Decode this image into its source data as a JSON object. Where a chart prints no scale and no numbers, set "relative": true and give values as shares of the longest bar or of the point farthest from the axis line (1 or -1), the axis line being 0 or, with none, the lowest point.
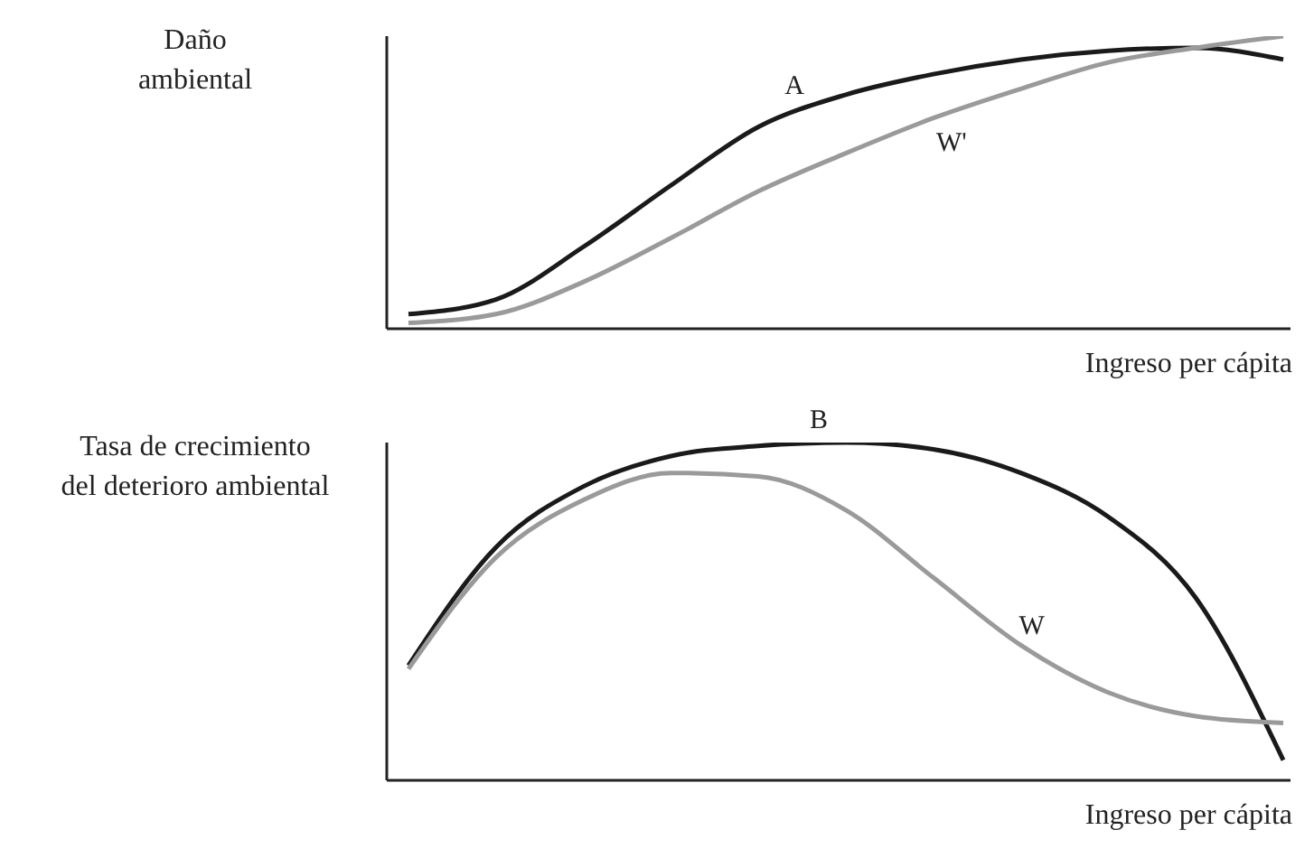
{
  "chart_data": [
    {
      "type": "line",
      "relative": true,
      "ylabel": "Daño ambiental",
      "xlabel": "Ingreso per cápita",
      "categories": [
        null,
        null,
        null,
        null,
        null,
        null,
        null,
        null,
        null,
        null,
        null
      ],
      "legend": false,
      "grid": false,
      "marker": "none",
      "line_style": "solid",
      "series": [
        {
          "name": "A",
          "color": "#1a1a1a",
          "values": [
            0.05,
            0.1,
            0.28,
            0.49,
            0.69,
            0.8,
            0.87,
            0.92,
            0.95,
            0.96,
            0.92
          ]
        },
        {
          "name": "W'",
          "color": "#9a9a9a",
          "values": [
            0.02,
            0.05,
            0.16,
            0.31,
            0.47,
            0.6,
            0.72,
            0.82,
            0.91,
            0.96,
            1
          ]
        }
      ]
    },
    {
      "type": "line",
      "relative": true,
      "ylabel": "Tasa de crecimiento del deterioro ambiental",
      "xlabel": "Ingreso per cápita",
      "categories": [
        null,
        null,
        null,
        null,
        null,
        null,
        null,
        null,
        null,
        null,
        null
      ],
      "legend": false,
      "grid": false,
      "marker": "none",
      "line_style": "solid",
      "series": [
        {
          "name": "B",
          "color": "#1a1a1a",
          "values": [
            0.34,
            0.69,
            0.87,
            0.96,
            0.99,
            1,
            0.98,
            0.91,
            0.78,
            0.54,
            0.06
          ]
        },
        {
          "name": "W",
          "color": "#9a9a9a",
          "values": [
            0.33,
            0.66,
            0.83,
            0.91,
            0.9,
            0.8,
            0.6,
            0.4,
            0.26,
            0.19,
            0.17
          ]
        }
      ]
    }
  ]
}
